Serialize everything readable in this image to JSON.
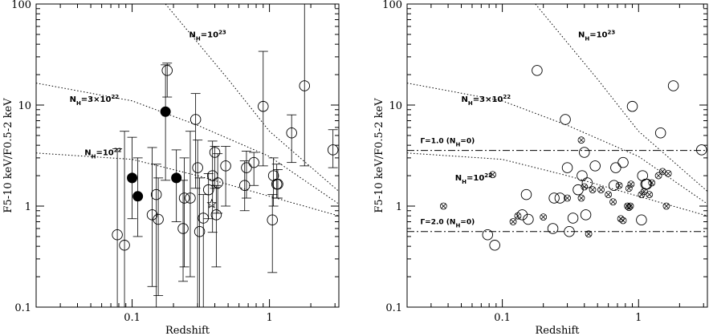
{
  "chart_data": [
    {
      "type": "scatter",
      "xlabel": "Redshift",
      "ylabel": "F5-10 keV/F0.5-2 keV",
      "x_scale": "log",
      "y_scale": "log",
      "xlim": [
        0.02,
        3.2
      ],
      "ylim": [
        0.1,
        100
      ],
      "x_ticks": [
        {
          "v": 0.1,
          "label": "0.1"
        },
        {
          "v": 1,
          "label": "1"
        }
      ],
      "y_ticks": [
        {
          "v": 0.1,
          "label": "0.1"
        },
        {
          "v": 1,
          "label": "1"
        },
        {
          "v": 10,
          "label": "10"
        },
        {
          "v": 100,
          "label": "100"
        }
      ],
      "curves": [
        {
          "label_parts": [
            "N",
            "H",
            "=10",
            "23"
          ],
          "label_at": [
            0.26,
            47
          ],
          "points": [
            [
              0.175,
              100
            ],
            [
              0.5,
              18
            ],
            [
              1.0,
              5.5
            ],
            [
              3.2,
              1.4
            ]
          ]
        },
        {
          "label_parts": [
            "N",
            "H",
            "=3×10",
            "22"
          ],
          "label_at": [
            0.035,
            10.8
          ],
          "points": [
            [
              0.02,
              16.5
            ],
            [
              0.1,
              11
            ],
            [
              0.3,
              6.3
            ],
            [
              1.0,
              3.1
            ],
            [
              3.2,
              1.05
            ]
          ]
        },
        {
          "label_parts": [
            "N",
            "H",
            "=10",
            "22"
          ],
          "label_at": [
            0.045,
            3.2
          ],
          "points": [
            [
              0.02,
              3.35
            ],
            [
              0.1,
              2.9
            ],
            [
              0.3,
              2.0
            ],
            [
              1.0,
              1.25
            ],
            [
              3.2,
              0.8
            ]
          ]
        }
      ],
      "open_points": [
        {
          "x": 0.078,
          "y": 0.52,
          "ylo": 0.1,
          "yhi": 3.7
        },
        {
          "x": 0.088,
          "y": 0.41,
          "ylo": 0.1,
          "yhi": 5.5
        },
        {
          "x": 0.14,
          "y": 0.82,
          "ylo": 0.16,
          "yhi": 3.8
        },
        {
          "x": 0.15,
          "y": 1.3,
          "ylo": 0.1,
          "yhi": 2.6
        },
        {
          "x": 0.155,
          "y": 0.74,
          "ylo": 0.13,
          "yhi": 1.9
        },
        {
          "x": 0.18,
          "y": 22,
          "ylo": 12,
          "yhi": 26
        },
        {
          "x": 0.235,
          "y": 0.6,
          "ylo": 0.18,
          "yhi": 1.8
        },
        {
          "x": 0.24,
          "y": 1.2,
          "ylo": 0.25,
          "yhi": 3.0
        },
        {
          "x": 0.265,
          "y": 1.2,
          "ylo": 0.2,
          "yhi": 5.5
        },
        {
          "x": 0.29,
          "y": 7.2,
          "ylo": 1.5,
          "yhi": 13
        },
        {
          "x": 0.3,
          "y": 2.4,
          "ylo": 0.1,
          "yhi": 4.5
        },
        {
          "x": 0.31,
          "y": 0.56,
          "ylo": 0.1,
          "yhi": 1.9
        },
        {
          "x": 0.33,
          "y": 0.76,
          "ylo": 0.1,
          "yhi": 1.3
        },
        {
          "x": 0.36,
          "y": 1.45,
          "ylo": 0.75,
          "yhi": 2.1
        },
        {
          "x": 0.385,
          "y": 2.0,
          "ylo": 0.55,
          "yhi": 4.4
        },
        {
          "x": 0.4,
          "y": 3.4,
          "ylo": 1.5,
          "yhi": 3.9
        },
        {
          "x": 0.41,
          "y": 0.82,
          "ylo": 0.25,
          "yhi": 1.6
        },
        {
          "x": 0.42,
          "y": 1.7,
          "ylo": 0.85,
          "yhi": 3.3
        },
        {
          "x": 0.48,
          "y": 2.5,
          "ylo": 1.0,
          "yhi": 3.9
        },
        {
          "x": 0.66,
          "y": 1.6,
          "ylo": 0.9,
          "yhi": 2.8
        },
        {
          "x": 0.68,
          "y": 2.4,
          "ylo": 1.2,
          "yhi": 3.5
        },
        {
          "x": 0.77,
          "y": 2.7,
          "ylo": 1.6,
          "yhi": 3.4
        },
        {
          "x": 0.9,
          "y": 9.7,
          "ylo": 2.5,
          "yhi": 34
        },
        {
          "x": 1.05,
          "y": 0.73,
          "ylo": 0.22,
          "yhi": 1.3
        },
        {
          "x": 1.07,
          "y": 2.0,
          "ylo": 1.0,
          "yhi": 3.0
        },
        {
          "x": 1.13,
          "y": 1.65,
          "ylo": 1.2,
          "yhi": 2.6
        },
        {
          "x": 1.15,
          "y": 1.65,
          "ylo": 1.2,
          "yhi": 2.3
        },
        {
          "x": 1.45,
          "y": 5.3,
          "ylo": 2.7,
          "yhi": 8.0
        },
        {
          "x": 1.8,
          "y": 15.5,
          "ylo": 2.5,
          "yhi": 100
        },
        {
          "x": 2.9,
          "y": 3.6,
          "ylo": 2.4,
          "yhi": 5.7
        }
      ],
      "filled_points": [
        {
          "x": 0.1,
          "y": 1.9,
          "ylo": 0.75,
          "yhi": 4.8
        },
        {
          "x": 0.11,
          "y": 1.25,
          "ylo": 0.5,
          "yhi": 3.0
        },
        {
          "x": 0.175,
          "y": 8.6,
          "ylo": 1.8,
          "yhi": 25
        },
        {
          "x": 0.21,
          "y": 1.9,
          "ylo": 0.7,
          "yhi": 3.6
        }
      ],
      "star_points": [
        {
          "x": 0.38,
          "y": 1.05
        }
      ]
    },
    {
      "type": "scatter",
      "xlabel": "Redshift",
      "ylabel": "F5-10 keV/F0.5-2 keV",
      "x_scale": "log",
      "y_scale": "log",
      "xlim": [
        0.02,
        3.2
      ],
      "ylim": [
        0.1,
        100
      ],
      "x_ticks": [
        {
          "v": 0.1,
          "label": "0.1"
        },
        {
          "v": 1,
          "label": "1"
        }
      ],
      "y_ticks": [
        {
          "v": 0.1,
          "label": "0.1"
        },
        {
          "v": 1,
          "label": "1"
        },
        {
          "v": 10,
          "label": "10"
        },
        {
          "v": 100,
          "label": "100"
        }
      ],
      "curves": [
        {
          "label_parts": [
            "N",
            "H",
            "=10",
            "23"
          ],
          "label_at": [
            0.36,
            47
          ],
          "points": [
            [
              0.175,
              100
            ],
            [
              0.5,
              18
            ],
            [
              1.0,
              5.5
            ],
            [
              3.2,
              1.4
            ]
          ]
        },
        {
          "label_parts": [
            "N",
            "H",
            "=3×10",
            "22"
          ],
          "label_at": [
            0.05,
            10.8
          ],
          "points": [
            [
              0.02,
              16.5
            ],
            [
              0.1,
              11
            ],
            [
              0.3,
              6.3
            ],
            [
              1.0,
              3.1
            ],
            [
              3.2,
              1.05
            ]
          ]
        },
        {
          "label_parts": [
            "N",
            "H",
            "=10",
            "22"
          ],
          "label_at": [
            0.045,
            1.8
          ],
          "points": [
            [
              0.02,
              3.35
            ],
            [
              0.1,
              2.9
            ],
            [
              0.3,
              2.0
            ],
            [
              1.0,
              1.25
            ],
            [
              3.2,
              0.8
            ]
          ]
        }
      ],
      "h_lines": [
        {
          "y": 3.55,
          "label_parts": [
            "Γ=1.0 (N",
            "H",
            "=0)"
          ],
          "label_at": [
            0.025,
            4.2
          ]
        },
        {
          "y": 0.56,
          "label_parts": [
            "Γ=2.0 (N",
            "H",
            "=0)"
          ],
          "label_at": [
            0.025,
            0.66
          ]
        }
      ],
      "open_points": [
        {
          "x": 0.078,
          "y": 0.52
        },
        {
          "x": 0.088,
          "y": 0.41
        },
        {
          "x": 0.14,
          "y": 0.82
        },
        {
          "x": 0.15,
          "y": 1.3
        },
        {
          "x": 0.155,
          "y": 0.74
        },
        {
          "x": 0.18,
          "y": 22
        },
        {
          "x": 0.235,
          "y": 0.6
        },
        {
          "x": 0.24,
          "y": 1.2
        },
        {
          "x": 0.265,
          "y": 1.2
        },
        {
          "x": 0.29,
          "y": 7.2
        },
        {
          "x": 0.3,
          "y": 2.4
        },
        {
          "x": 0.31,
          "y": 0.56
        },
        {
          "x": 0.33,
          "y": 0.76
        },
        {
          "x": 0.36,
          "y": 1.45
        },
        {
          "x": 0.385,
          "y": 2.0
        },
        {
          "x": 0.4,
          "y": 3.4
        },
        {
          "x": 0.41,
          "y": 0.82
        },
        {
          "x": 0.42,
          "y": 1.7
        },
        {
          "x": 0.48,
          "y": 2.5
        },
        {
          "x": 0.66,
          "y": 1.6
        },
        {
          "x": 0.68,
          "y": 2.4
        },
        {
          "x": 0.77,
          "y": 2.7
        },
        {
          "x": 0.9,
          "y": 9.7
        },
        {
          "x": 1.05,
          "y": 0.73
        },
        {
          "x": 1.07,
          "y": 2.0
        },
        {
          "x": 1.13,
          "y": 1.65
        },
        {
          "x": 1.15,
          "y": 1.65
        },
        {
          "x": 1.45,
          "y": 5.3
        },
        {
          "x": 1.8,
          "y": 15.5
        },
        {
          "x": 2.9,
          "y": 3.6
        }
      ],
      "crossed_points": [
        {
          "x": 0.037,
          "y": 1.0
        },
        {
          "x": 0.085,
          "y": 2.05
        },
        {
          "x": 0.12,
          "y": 0.7
        },
        {
          "x": 0.13,
          "y": 0.8
        },
        {
          "x": 0.2,
          "y": 0.78
        },
        {
          "x": 0.3,
          "y": 1.2
        },
        {
          "x": 0.38,
          "y": 4.5
        },
        {
          "x": 0.38,
          "y": 1.2
        },
        {
          "x": 0.4,
          "y": 1.55
        },
        {
          "x": 0.43,
          "y": 0.53
        },
        {
          "x": 0.46,
          "y": 1.45
        },
        {
          "x": 0.53,
          "y": 1.45
        },
        {
          "x": 0.6,
          "y": 1.3
        },
        {
          "x": 0.65,
          "y": 1.1
        },
        {
          "x": 0.72,
          "y": 1.6
        },
        {
          "x": 0.74,
          "y": 0.75
        },
        {
          "x": 0.77,
          "y": 0.72
        },
        {
          "x": 0.83,
          "y": 1.0
        },
        {
          "x": 0.85,
          "y": 1.5
        },
        {
          "x": 0.85,
          "y": 0.97
        },
        {
          "x": 0.87,
          "y": 1.0
        },
        {
          "x": 0.88,
          "y": 1.65
        },
        {
          "x": 1.05,
          "y": 1.3
        },
        {
          "x": 1.1,
          "y": 1.4
        },
        {
          "x": 1.2,
          "y": 1.3
        },
        {
          "x": 1.25,
          "y": 1.7
        },
        {
          "x": 1.4,
          "y": 2.0
        },
        {
          "x": 1.5,
          "y": 2.2
        },
        {
          "x": 1.6,
          "y": 1.0
        },
        {
          "x": 1.65,
          "y": 2.1
        }
      ]
    }
  ]
}
